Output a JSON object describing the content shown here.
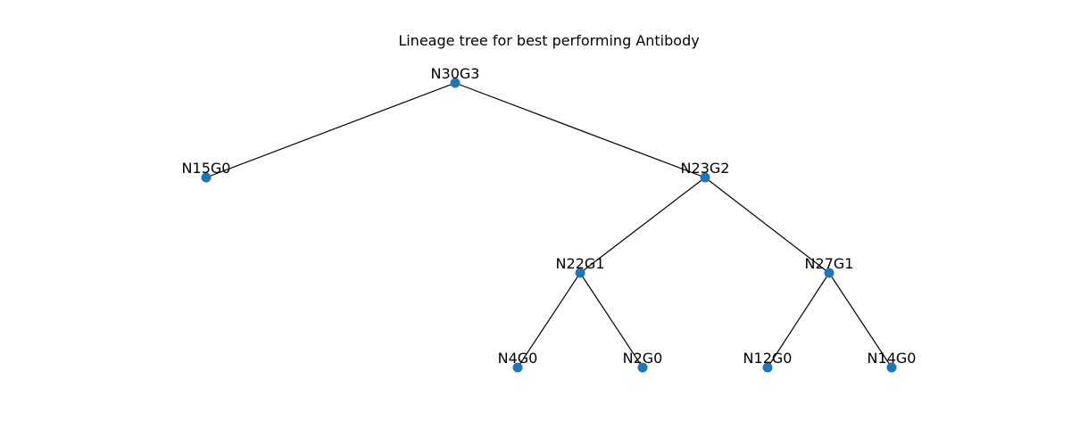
{
  "title": "Lineage tree for best performing Antibody",
  "node_color": "#1f77b4",
  "edge_color": "#000000",
  "tree": {
    "root": "N30G3",
    "nodes": [
      {
        "id": "N30G3"
      },
      {
        "id": "N15G0"
      },
      {
        "id": "N23G2"
      },
      {
        "id": "N22G1"
      },
      {
        "id": "N27G1"
      },
      {
        "id": "N4G0"
      },
      {
        "id": "N2G0"
      },
      {
        "id": "N12G0"
      },
      {
        "id": "N14G0"
      }
    ],
    "edges": [
      {
        "from": "N30G3",
        "to": "N15G0"
      },
      {
        "from": "N30G3",
        "to": "N23G2"
      },
      {
        "from": "N23G2",
        "to": "N22G1"
      },
      {
        "from": "N23G2",
        "to": "N27G1"
      },
      {
        "from": "N22G1",
        "to": "N4G0"
      },
      {
        "from": "N22G1",
        "to": "N2G0"
      },
      {
        "from": "N27G1",
        "to": "N12G0"
      },
      {
        "from": "N27G1",
        "to": "N14G0"
      }
    ]
  }
}
